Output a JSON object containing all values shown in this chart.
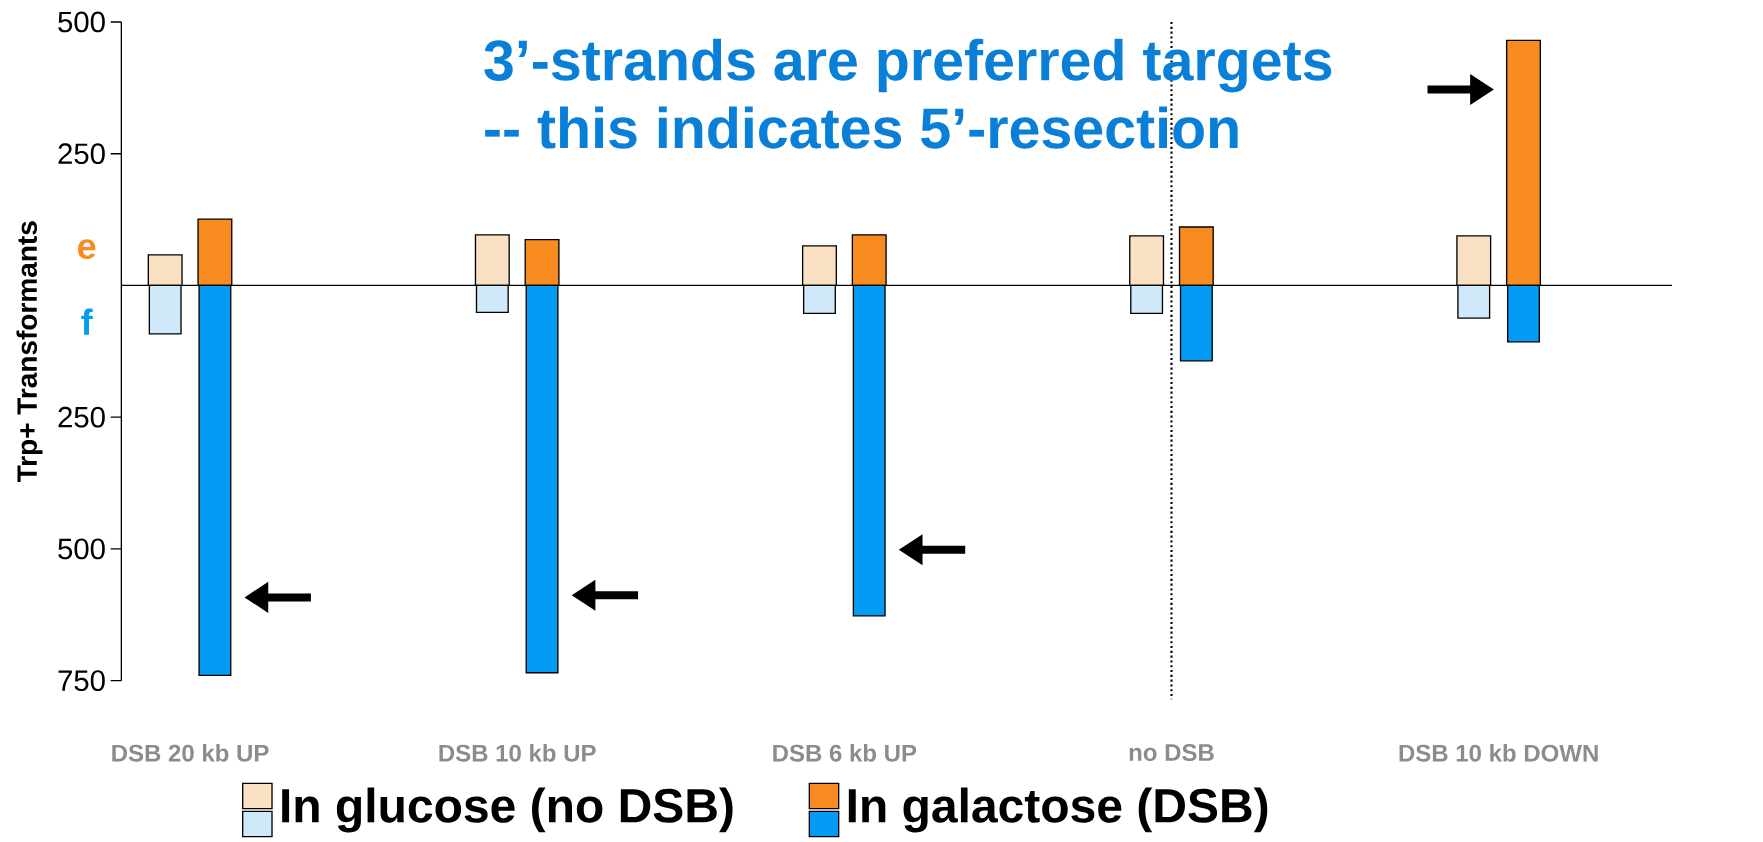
{
  "chart_data": {
    "type": "bar",
    "title": "3’-strands are preferred targets",
    "subtitle": "-- this indicates 5’-resection",
    "ylabel": "Trp+ Transformants",
    "categories": [
      "DSB 20 kb UP",
      "DSB 10 kb UP",
      "DSB 6 kb UP",
      "no DSB",
      "DSB 10 kb DOWN"
    ],
    "series": [
      {
        "name": "In glucose (no DSB)",
        "color": "#fbe1c4",
        "values": [
          58,
          96,
          75,
          94,
          94
        ]
      },
      {
        "color": "#cfe9fb",
        "values": [
          -92,
          -51,
          -53,
          -53,
          -62
        ]
      },
      {
        "name": "In galactose (DSB)",
        "color": "#f78b1f",
        "values": [
          126,
          87,
          96,
          111,
          465
        ]
      },
      {
        "color": "#049bf4",
        "values": [
          -740,
          -735,
          -627,
          -143,
          -107
        ]
      }
    ],
    "ylim": [
      -750,
      500
    ],
    "yticks": [
      500,
      250,
      {
        "value": -250,
        "label": "250"
      },
      {
        "value": -500,
        "label": "500"
      },
      {
        "value": -750,
        "label": "750"
      }
    ],
    "annotations": [
      "e",
      "f"
    ],
    "legend": "bottom"
  }
}
